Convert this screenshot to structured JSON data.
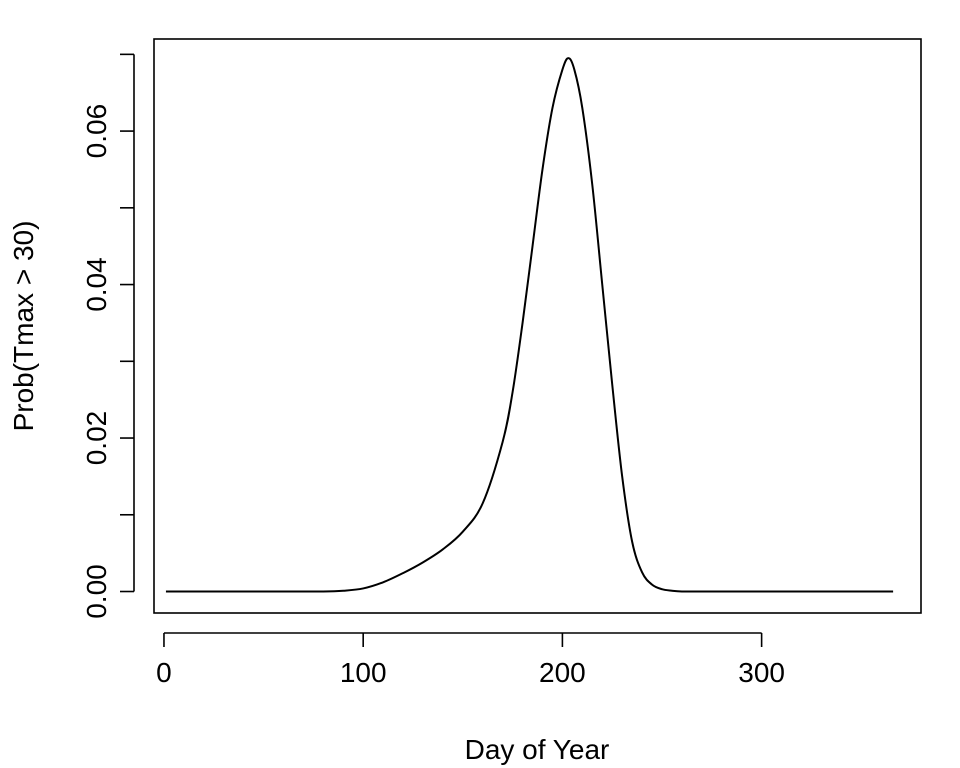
{
  "chart_data": {
    "type": "line",
    "title": "",
    "xlabel": "Day of Year",
    "ylabel": "Prob(Tmax > 30)",
    "xlim": [
      -5,
      380
    ],
    "ylim": [
      -0.0028,
      0.072
    ],
    "x_ticks": [
      0,
      100,
      200,
      300
    ],
    "x_tick_labels": [
      "0",
      "100",
      "200",
      "300"
    ],
    "y_ticks": [
      0,
      0.01,
      0.02,
      0.03,
      0.04,
      0.05,
      0.06,
      0.07
    ],
    "y_tick_labels": [
      "0.00",
      "",
      "0.02",
      "",
      "0.04",
      "",
      "0.06",
      ""
    ],
    "grid": false,
    "legend": "none",
    "line_color": "#000000",
    "series": [
      {
        "x": [
          1,
          20,
          40,
          60,
          80,
          90,
          100,
          110,
          120,
          130,
          140,
          150,
          160,
          170,
          175,
          180,
          185,
          190,
          195,
          200,
          203,
          206,
          210,
          215,
          220,
          225,
          230,
          235,
          240,
          245,
          250,
          255,
          260,
          270,
          280,
          300,
          330,
          366
        ],
        "y": [
          0,
          0,
          0,
          0,
          0,
          0.0001,
          0.0004,
          0.0012,
          0.0024,
          0.0038,
          0.0055,
          0.0078,
          0.0115,
          0.0195,
          0.026,
          0.035,
          0.045,
          0.055,
          0.063,
          0.068,
          0.0695,
          0.068,
          0.063,
          0.053,
          0.04,
          0.027,
          0.015,
          0.0065,
          0.0025,
          0.0009,
          0.0003,
          0.0001,
          0,
          0,
          0,
          0,
          0,
          0
        ]
      }
    ]
  }
}
